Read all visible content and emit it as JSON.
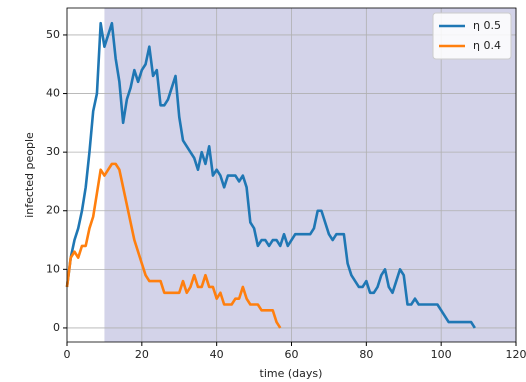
{
  "chart_data": {
    "type": "line",
    "xlabel": "time (days)",
    "ylabel": "infected people",
    "xlim": [
      0,
      120
    ],
    "ylim": [
      -2.4,
      54.6
    ],
    "xticks": [
      0,
      20,
      40,
      60,
      80,
      100,
      120
    ],
    "yticks": [
      0,
      10,
      20,
      30,
      40,
      50
    ],
    "grid": true,
    "legend": "upper right",
    "shaded_region": [
      10,
      120
    ],
    "shaded_color": "#d3d3e9",
    "x": [
      0,
      1,
      2,
      3,
      4,
      5,
      6,
      7,
      8,
      9,
      10,
      11,
      12,
      13,
      14,
      15,
      16,
      17,
      18,
      19,
      20,
      21,
      22,
      23,
      24,
      25,
      26,
      27,
      28,
      29,
      30,
      31,
      32,
      33,
      34,
      35,
      36,
      37,
      38,
      39,
      40,
      41,
      42,
      43,
      44,
      45,
      46,
      47,
      48,
      49,
      50,
      51,
      52,
      53,
      54,
      55,
      56,
      57,
      58,
      59,
      60,
      61,
      62,
      63,
      64,
      65,
      66,
      67,
      68,
      69,
      70,
      71,
      72,
      73,
      74,
      75,
      76,
      77,
      78,
      79,
      80,
      81,
      82,
      83,
      84,
      85,
      86,
      87,
      88,
      89,
      90,
      91,
      92,
      93,
      94,
      95,
      96,
      97,
      98,
      99,
      100,
      101,
      102,
      103,
      104,
      105,
      106,
      107,
      108,
      109
    ],
    "series": [
      {
        "name": "η 0.5",
        "color": "#1f77b4",
        "values": [
          7,
          12,
          15,
          17,
          20,
          24,
          30,
          37,
          40,
          52,
          48,
          50,
          52,
          46,
          42,
          35,
          39,
          41,
          44,
          42,
          44,
          45,
          48,
          43,
          44,
          38,
          38,
          39,
          41,
          43,
          36,
          32,
          31,
          30,
          29,
          27,
          30,
          28,
          31,
          26,
          27,
          26,
          24,
          26,
          26,
          26,
          25,
          26,
          24,
          18,
          17,
          14,
          15,
          15,
          14,
          15,
          15,
          14,
          16,
          14,
          15,
          16,
          16,
          16,
          16,
          16,
          17,
          20,
          20,
          18,
          16,
          15,
          16,
          16,
          16,
          11,
          9,
          8,
          7,
          7,
          8,
          6,
          6,
          7,
          9,
          10,
          7,
          6,
          8,
          10,
          9,
          4,
          4,
          5,
          4,
          4,
          4,
          4,
          4,
          4,
          3,
          2,
          1,
          1,
          1,
          1,
          1,
          1,
          1,
          0
        ]
      },
      {
        "name": "η 0.4",
        "color": "#ff7f0e",
        "values": [
          7,
          12,
          13,
          12,
          14,
          14,
          17,
          19,
          23,
          27,
          26,
          27,
          28,
          28,
          27,
          24,
          21,
          18,
          15,
          13,
          11,
          9,
          8,
          8,
          8,
          8,
          6,
          6,
          6,
          6,
          6,
          8,
          6,
          7,
          9,
          7,
          7,
          9,
          7,
          7,
          5,
          6,
          4,
          4,
          4,
          5,
          5,
          7,
          5,
          4,
          4,
          4,
          3,
          3,
          3,
          3,
          1,
          0,
          null,
          null,
          null,
          null,
          null,
          null,
          null,
          null,
          null,
          null,
          null,
          null,
          null,
          null,
          null,
          null,
          null,
          null,
          null,
          null,
          null,
          null,
          null,
          null,
          null,
          null,
          null,
          null,
          null,
          null,
          null,
          null,
          null,
          null,
          null,
          null,
          null,
          null,
          null,
          null,
          null,
          null,
          null,
          null,
          null,
          null,
          null,
          null,
          null,
          null,
          null,
          null
        ]
      }
    ]
  }
}
